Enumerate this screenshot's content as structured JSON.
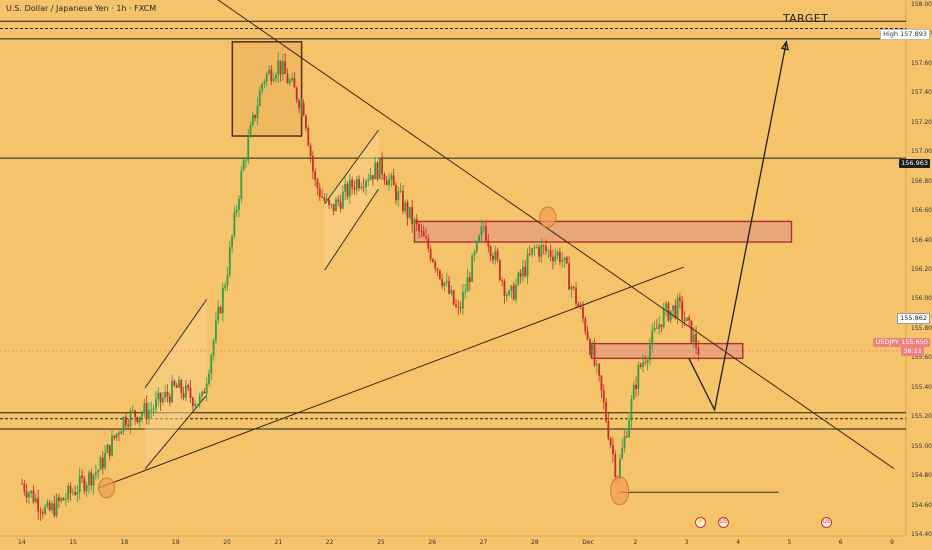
{
  "header": {
    "title": "U.S. Dollar / Japanese Yen · 1h · FXCM"
  },
  "annotation": {
    "target_label": "TARGET"
  },
  "price_labels": {
    "high_label": "High",
    "high_value": "157.893",
    "level_value": "156.963",
    "cur_value": "155.862",
    "symbol": "USDJPY",
    "last_value": "155.650",
    "countdown": "38:11"
  },
  "colors": {
    "background": "#f5c46a",
    "candle_up": "#2f9e44",
    "candle_down": "#c92a2a",
    "zone_fill": "#e8a07a",
    "zone_border": "#a83232",
    "marker_circle": "#f0a050",
    "trendline": "#3a2a1a",
    "price_tag": "#f08080"
  },
  "events": [
    "⚡",
    "US",
    "US"
  ],
  "chart_data": {
    "type": "candlestick",
    "title": "U.S. Dollar / Japanese Yen · 1h · FXCM",
    "ylim": [
      154.4,
      158.0
    ],
    "y_ticks": [
      154.4,
      154.6,
      154.8,
      155.0,
      155.2,
      155.4,
      155.6,
      155.8,
      156.0,
      156.2,
      156.4,
      156.6,
      156.8,
      157.0,
      157.2,
      157.4,
      157.6,
      157.8,
      158.0
    ],
    "y_tick_labels": [
      "154.400",
      "154.600",
      "154.800",
      "155.000",
      "155.200",
      "155.400",
      "155.600",
      "155.800",
      "156.000",
      "156.200",
      "156.400",
      "156.600",
      "156.800",
      "157.000",
      "157.200",
      "157.400",
      "157.600",
      "157.800",
      "158.000"
    ],
    "x_labels": [
      "14",
      "15",
      "18",
      "19",
      "20",
      "21",
      "22",
      "25",
      "26",
      "27",
      "28",
      "Dec",
      "2",
      "3",
      "4",
      "5",
      "6",
      "9"
    ],
    "x_day_index": [
      0,
      1,
      2,
      3,
      4,
      5,
      6,
      7,
      8,
      9,
      10,
      11,
      12,
      13,
      14,
      15,
      16,
      17
    ],
    "close_path": [
      {
        "day": 0.0,
        "price": 154.75
      },
      {
        "day": 0.5,
        "price": 154.55
      },
      {
        "day": 1.0,
        "price": 154.7
      },
      {
        "day": 1.5,
        "price": 154.85
      },
      {
        "day": 2.0,
        "price": 155.2
      },
      {
        "day": 2.5,
        "price": 155.25
      },
      {
        "day": 3.0,
        "price": 155.4
      },
      {
        "day": 3.5,
        "price": 155.3
      },
      {
        "day": 4.0,
        "price": 156.2
      },
      {
        "day": 4.3,
        "price": 156.9
      },
      {
        "day": 4.7,
        "price": 157.5
      },
      {
        "day": 5.0,
        "price": 157.6
      },
      {
        "day": 5.5,
        "price": 157.3
      },
      {
        "day": 5.7,
        "price": 156.8
      },
      {
        "day": 6.0,
        "price": 156.6
      },
      {
        "day": 6.5,
        "price": 156.8
      },
      {
        "day": 7.0,
        "price": 156.9
      },
      {
        "day": 7.5,
        "price": 156.6
      },
      {
        "day": 8.0,
        "price": 156.3
      },
      {
        "day": 8.5,
        "price": 155.9
      },
      {
        "day": 9.0,
        "price": 156.5
      },
      {
        "day": 9.5,
        "price": 156.0
      },
      {
        "day": 10.0,
        "price": 156.35
      },
      {
        "day": 10.5,
        "price": 156.3
      },
      {
        "day": 11.0,
        "price": 155.8
      },
      {
        "day": 11.3,
        "price": 155.35
      },
      {
        "day": 11.6,
        "price": 154.8
      },
      {
        "day": 12.0,
        "price": 155.5
      },
      {
        "day": 12.5,
        "price": 155.9
      },
      {
        "day": 12.8,
        "price": 155.95
      },
      {
        "day": 13.2,
        "price": 155.65
      }
    ],
    "horizontal_levels": [
      157.89,
      157.84,
      157.77,
      156.96,
      155.23,
      155.19,
      155.12
    ],
    "zones": [
      {
        "from_day": 7.65,
        "to_day": 15.0,
        "low": 156.39,
        "high": 156.53
      },
      {
        "from_day": 11.1,
        "to_day": 14.05,
        "low": 155.6,
        "high": 155.7
      }
    ],
    "boxes": [
      {
        "from_day": 4.1,
        "to_day": 5.45,
        "low": 157.11,
        "high": 157.75
      }
    ],
    "channels": [
      {
        "from_day": 2.4,
        "to_day": 3.6,
        "lower": [
          154.85,
          155.35
        ],
        "upper": [
          155.4,
          156.0
        ]
      },
      {
        "from_day": 5.9,
        "to_day": 6.95,
        "lower": [
          156.2,
          156.75
        ],
        "upper": [
          156.65,
          157.15
        ]
      }
    ],
    "trendlines": [
      {
        "from": {
          "day": 3.55,
          "price": 158.1
        },
        "to": {
          "day": 17.0,
          "price": 154.85
        }
      },
      {
        "from": {
          "day": 1.5,
          "price": 154.72
        },
        "to": {
          "day": 12.9,
          "price": 156.22
        }
      }
    ],
    "projection": [
      {
        "day": 13.0,
        "price": 155.6
      },
      {
        "day": 13.5,
        "price": 155.25
      },
      {
        "day": 14.9,
        "price": 157.75
      }
    ],
    "support_ray": {
      "from_day": 11.65,
      "to_day": 14.75,
      "price": 154.69
    },
    "markers": [
      {
        "day": 1.65,
        "price": 154.72
      },
      {
        "day": 10.25,
        "price": 156.56
      },
      {
        "day": 11.65,
        "price": 154.7
      }
    ],
    "high_value": 157.893,
    "current_price": 155.65
  }
}
